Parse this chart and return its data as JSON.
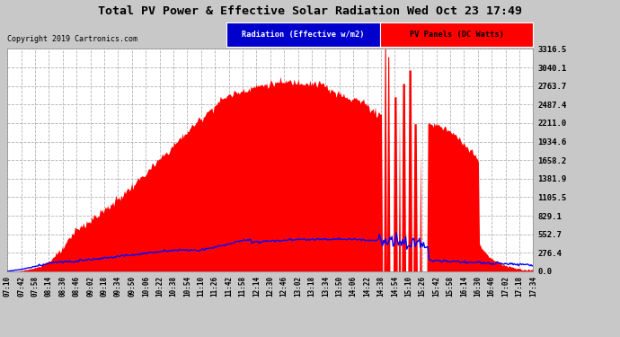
{
  "title": "Total PV Power & Effective Solar Radiation Wed Oct 23 17:49",
  "copyright": "Copyright 2019 Cartronics.com",
  "legend_radiation": "Radiation (Effective w/m2)",
  "legend_pv": "PV Panels (DC Watts)",
  "yticks": [
    0.0,
    276.4,
    552.7,
    829.1,
    1105.5,
    1381.9,
    1658.2,
    1934.6,
    2211.0,
    2487.4,
    2763.7,
    3040.1,
    3316.5
  ],
  "xtick_labels": [
    "07:10",
    "07:42",
    "07:58",
    "08:14",
    "08:30",
    "08:46",
    "09:02",
    "09:18",
    "09:34",
    "09:50",
    "10:06",
    "10:22",
    "10:38",
    "10:54",
    "11:10",
    "11:26",
    "11:42",
    "11:58",
    "12:14",
    "12:30",
    "12:46",
    "13:02",
    "13:18",
    "13:34",
    "13:50",
    "14:06",
    "14:22",
    "14:38",
    "14:54",
    "15:10",
    "15:26",
    "15:42",
    "15:58",
    "16:14",
    "16:30",
    "16:46",
    "17:02",
    "17:18",
    "17:34"
  ],
  "bg_color": "#c8c8c8",
  "plot_bg_color": "#ffffff",
  "grid_color": "#aaaaaa",
  "title_color": "#000000",
  "pv_color": "#ff0000",
  "radiation_color": "#0000ff",
  "ymax": 3316.5,
  "figwidth": 6.9,
  "figheight": 3.75,
  "dpi": 100
}
